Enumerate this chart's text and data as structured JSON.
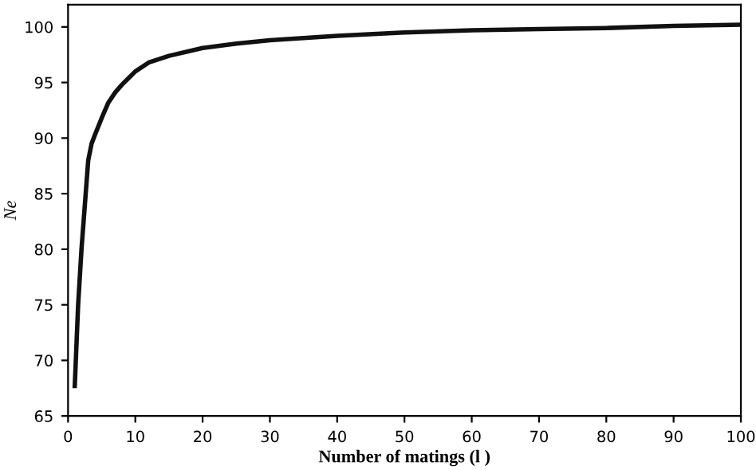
{
  "chart_data": {
    "type": "line",
    "xlabel": "Number of matings (l )",
    "ylabel": "Ne",
    "x": [
      1,
      1.5,
      2,
      2.5,
      3,
      3.5,
      4,
      5,
      6,
      7,
      8,
      9,
      10,
      12,
      15,
      20,
      25,
      30,
      40,
      50,
      60,
      70,
      80,
      90,
      100
    ],
    "series": [
      {
        "color": "#111111",
        "values": [
          67.7,
          75,
          80,
          84,
          88,
          89.5,
          90.3,
          91.8,
          93.2,
          94.1,
          94.8,
          95.4,
          96,
          96.8,
          97.4,
          98.1,
          98.5,
          98.8,
          99.2,
          99.5,
          99.7,
          99.8,
          99.9,
          100.1,
          100.2
        ]
      }
    ],
    "xlim": [
      0,
      100
    ],
    "ylim": [
      65,
      102
    ],
    "xticks": [
      0,
      10,
      20,
      30,
      40,
      50,
      60,
      70,
      80,
      90,
      100
    ],
    "yticks": [
      65,
      70,
      75,
      80,
      85,
      90,
      95,
      100
    ],
    "grid": false,
    "legend": false,
    "marker": "none",
    "line_style": "solid"
  }
}
